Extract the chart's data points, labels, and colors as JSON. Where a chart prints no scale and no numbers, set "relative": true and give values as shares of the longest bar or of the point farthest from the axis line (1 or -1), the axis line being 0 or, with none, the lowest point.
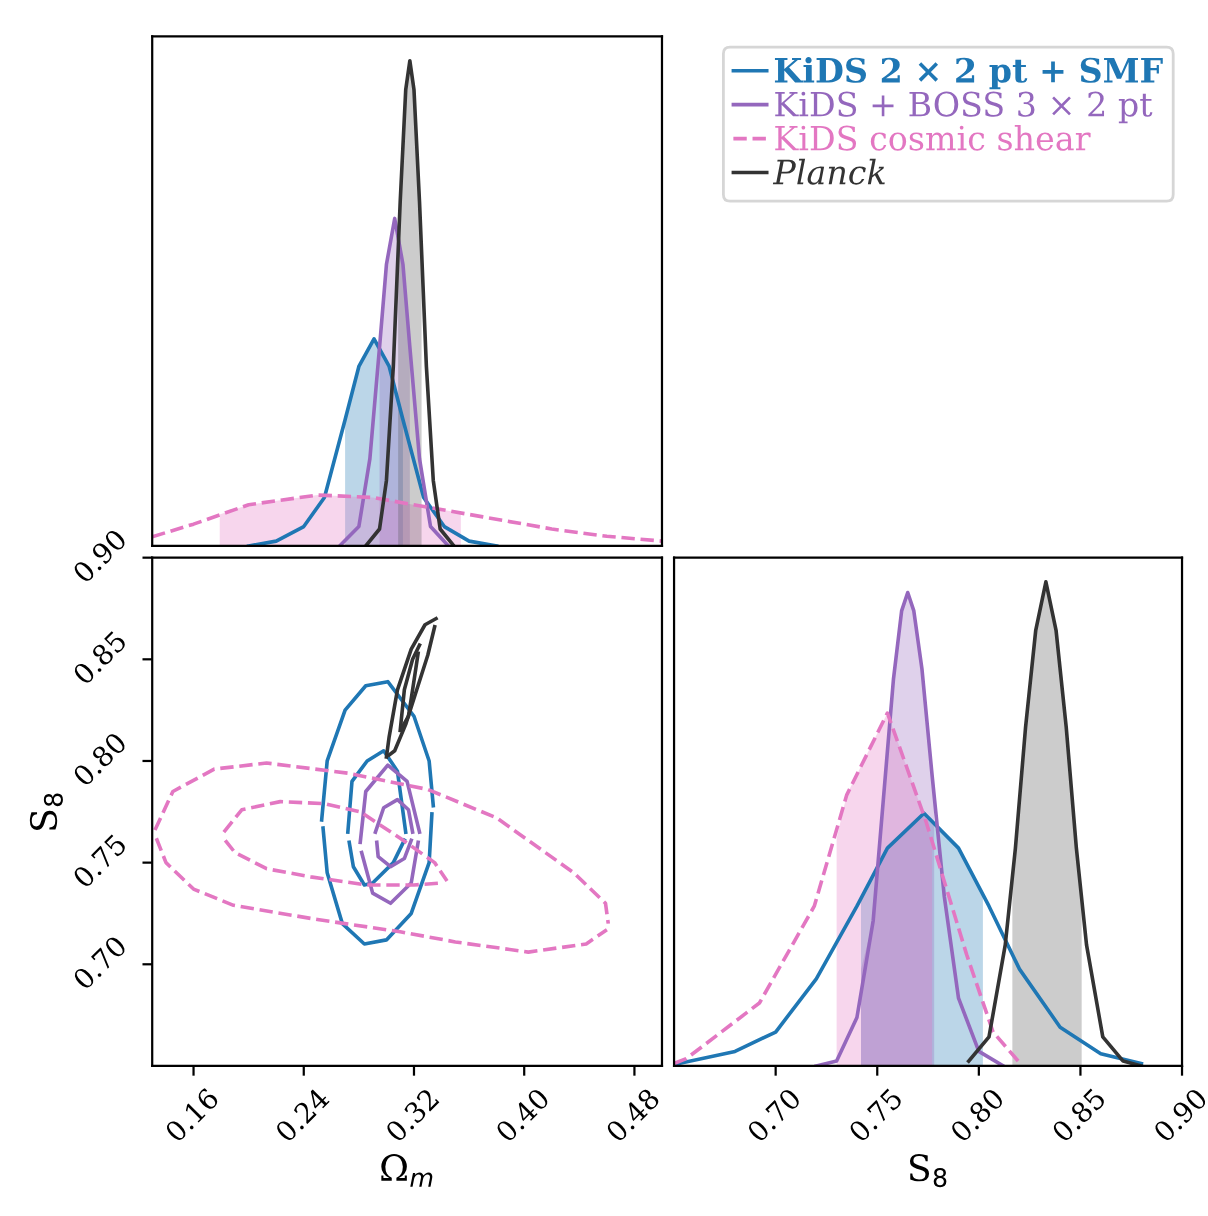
{
  "chart_data": [
    {
      "type": "line",
      "relative": true,
      "tick_labels": false,
      "legend": "top right",
      "xlim": [
        0.13,
        0.5
      ],
      "series": [
        {
          "type": "area",
          "color": "#1f77b4",
          "x": [
            0.27,
            0.28,
            0.291,
            0.302,
            0.312
          ],
          "values": [
            0.26,
            0.37,
            0.427,
            0.37,
            0.26
          ]
        },
        {
          "type": "area",
          "color": "#9467bd",
          "x": [
            0.295,
            0.3,
            0.306,
            0.312,
            0.317
          ],
          "values": [
            0.41,
            0.58,
            0.675,
            0.58,
            0.41
          ]
        },
        {
          "type": "area",
          "color": "#e377c2",
          "x": [
            0.179,
            0.2,
            0.25,
            0.29,
            0.33,
            0.354
          ],
          "values": [
            0.065,
            0.085,
            0.105,
            0.1,
            0.08,
            0.068
          ]
        },
        {
          "type": "area",
          "color": "#555555",
          "x": [
            0.3085,
            0.31,
            0.314,
            0.317,
            0.32,
            0.324,
            0.3255
          ],
          "values": [
            0.62,
            0.71,
            0.94,
            1,
            0.94,
            0.71,
            0.62
          ]
        },
        {
          "type": "line",
          "name": "KiDS 2 × 2 pt + SMF",
          "color": "#1f77b4",
          "x": [
            0.2,
            0.22,
            0.24,
            0.255,
            0.27,
            0.28,
            0.291,
            0.302,
            0.312,
            0.327,
            0.342,
            0.36,
            0.38
          ],
          "values": [
            0,
            0.01,
            0.04,
            0.1,
            0.26,
            0.37,
            0.427,
            0.37,
            0.26,
            0.1,
            0.04,
            0.01,
            0
          ]
        },
        {
          "type": "line",
          "name": "KiDS + BOSS 3 × 2 pt",
          "color": "#9467bd",
          "x": [
            0.266,
            0.28,
            0.288,
            0.295,
            0.3,
            0.306,
            0.312,
            0.317,
            0.324,
            0.332,
            0.345
          ],
          "values": [
            0,
            0.04,
            0.18,
            0.41,
            0.58,
            0.675,
            0.58,
            0.41,
            0.18,
            0.04,
            0
          ]
        },
        {
          "type": "line",
          "name": "KiDS cosmic shear",
          "color": "#e377c2",
          "line_style": "dashed",
          "x": [
            0.13,
            0.16,
            0.2,
            0.25,
            0.29,
            0.33,
            0.37,
            0.42,
            0.46,
            0.5
          ],
          "values": [
            0.019,
            0.045,
            0.085,
            0.105,
            0.1,
            0.08,
            0.06,
            0.035,
            0.02,
            0.01
          ]
        },
        {
          "type": "line",
          "name": "Planck",
          "color": "#333333",
          "x": [
            0.285,
            0.295,
            0.3,
            0.305,
            0.31,
            0.314,
            0.317,
            0.32,
            0.324,
            0.329,
            0.334,
            0.339,
            0.349
          ],
          "values": [
            0,
            0.035,
            0.135,
            0.37,
            0.71,
            0.94,
            1,
            0.94,
            0.71,
            0.37,
            0.135,
            0.035,
            0
          ]
        }
      ]
    },
    {
      "type": "line",
      "xlabel": "Ω$_{m}$",
      "ylabel": "S$_{8}$",
      "xlim": [
        0.13,
        0.5
      ],
      "ylim": [
        0.65,
        0.9
      ],
      "xticks": [
        0.16,
        0.24,
        0.32,
        {
          "value": 0.4,
          "label": "0.40"
        },
        0.48
      ],
      "yticks": [
        {
          "value": 0.7,
          "label": "0.70"
        },
        0.75,
        {
          "value": 0.8,
          "label": "0.80"
        },
        0.85,
        {
          "value": 0.9,
          "label": "0.90"
        }
      ],
      "series": [
        {
          "color": "#1f77b4",
          "x": [
            0.253,
            0.257,
            0.27,
            0.285,
            0.301,
            0.32,
            0.331,
            0.334
          ],
          "values": [
            0.771,
            0.8,
            0.825,
            0.837,
            0.839,
            0.822,
            0.8,
            0.778
          ]
        },
        {
          "color": "#1f77b4",
          "x": [
            0.254,
            0.257,
            0.268,
            0.284,
            0.3,
            0.318,
            0.331,
            0.333
          ],
          "values": [
            0.767,
            0.745,
            0.72,
            0.71,
            0.712,
            0.725,
            0.75,
            0.774
          ]
        },
        {
          "color": "#1f77b4",
          "x": [
            0.272,
            0.275,
            0.286,
            0.298,
            0.308,
            0.314
          ],
          "values": [
            0.765,
            0.79,
            0.8,
            0.805,
            0.795,
            0.765
          ]
        },
        {
          "color": "#1f77b4",
          "x": [
            0.273,
            0.276,
            0.284,
            0.29,
            0.305,
            0.313
          ],
          "values": [
            0.76,
            0.748,
            0.739,
            0.74,
            0.75,
            0.761
          ]
        },
        {
          "color": "#9467bd",
          "x": [
            0.281,
            0.285,
            0.301,
            0.315,
            0.324
          ],
          "values": [
            0.76,
            0.785,
            0.798,
            0.79,
            0.765
          ]
        },
        {
          "color": "#9467bd",
          "x": [
            0.282,
            0.29,
            0.303,
            0.318,
            0.323
          ],
          "values": [
            0.755,
            0.735,
            0.73,
            0.74,
            0.76
          ]
        },
        {
          "color": "#9467bd",
          "x": [
            0.292,
            0.298,
            0.308,
            0.316,
            0.319
          ],
          "values": [
            0.765,
            0.777,
            0.781,
            0.776,
            0.765
          ]
        },
        {
          "color": "#9467bd",
          "x": [
            0.293,
            0.294,
            0.303,
            0.313,
            0.318
          ],
          "values": [
            0.76,
            0.753,
            0.748,
            0.752,
            0.761
          ]
        },
        {
          "color": "#e377c2",
          "line_style": "dashed",
          "x": [
            0.132,
            0.145,
            0.175,
            0.213,
            0.272,
            0.33,
            0.38,
            0.436,
            0.459,
            0.461
          ],
          "values": [
            0.766,
            0.785,
            0.796,
            0.799,
            0.794,
            0.786,
            0.772,
            0.745,
            0.73,
            0.72
          ]
        },
        {
          "color": "#e377c2",
          "line_style": "dashed",
          "x": [
            0.133,
            0.14,
            0.16,
            0.189,
            0.25,
            0.31,
            0.35,
            0.403,
            0.445,
            0.46
          ],
          "values": [
            0.762,
            0.75,
            0.737,
            0.729,
            0.722,
            0.716,
            0.711,
            0.706,
            0.71,
            0.717
          ]
        },
        {
          "color": "#e377c2",
          "line_style": "dashed",
          "x": [
            0.182,
            0.195,
            0.223,
            0.255,
            0.281,
            0.31,
            0.335,
            0.344
          ],
          "values": [
            0.765,
            0.776,
            0.78,
            0.779,
            0.775,
            0.762,
            0.75,
            0.741
          ]
        },
        {
          "color": "#e377c2",
          "line_style": "dashed",
          "x": [
            0.183,
            0.19,
            0.213,
            0.245,
            0.286,
            0.32,
            0.341
          ],
          "values": [
            0.761,
            0.755,
            0.747,
            0.743,
            0.739,
            0.739,
            0.74
          ]
        },
        {
          "color": "#333333",
          "x": [
            0.3,
            0.302,
            0.308,
            0.318,
            0.328,
            0.336
          ],
          "values": [
            0.802,
            0.812,
            0.835,
            0.855,
            0.867,
            0.87
          ]
        },
        {
          "color": "#333333",
          "x": [
            0.302,
            0.306,
            0.314,
            0.322,
            0.33,
            0.335
          ],
          "values": [
            0.803,
            0.805,
            0.818,
            0.835,
            0.852,
            0.866
          ]
        },
        {
          "color": "#333333",
          "x": [
            0.31,
            0.313,
            0.319,
            0.324
          ],
          "values": [
            0.815,
            0.835,
            0.85,
            0.857
          ]
        },
        {
          "color": "#333333",
          "x": [
            0.311,
            0.316,
            0.319,
            0.323
          ],
          "values": [
            0.816,
            0.822,
            0.835,
            0.853
          ]
        }
      ]
    },
    {
      "type": "line",
      "relative": true,
      "tick_labels": "x",
      "xlabel": "S$_{8}$",
      "xlim": [
        0.65,
        0.9
      ],
      "xticks": [
        {
          "value": 0.7,
          "label": "0.70"
        },
        0.75,
        {
          "value": 0.8,
          "label": "0.80"
        },
        0.85,
        {
          "value": 0.9,
          "label": "0.90"
        }
      ],
      "series": [
        {
          "type": "area",
          "color": "#1f77b4",
          "x": [
            0.742,
            0.755,
            0.773,
            0.79,
            0.802
          ],
          "values": [
            0.34,
            0.45,
            0.522,
            0.45,
            0.36
          ]
        },
        {
          "type": "area",
          "color": "#9467bd",
          "x": [
            0.742,
            0.748,
            0.753,
            0.758,
            0.762,
            0.765,
            0.768,
            0.772,
            0.777,
            0.778
          ],
          "values": [
            0.2,
            0.3,
            0.55,
            0.8,
            0.94,
            0.978,
            0.94,
            0.82,
            0.6,
            0.55
          ]
        },
        {
          "type": "area",
          "color": "#e377c2",
          "x": [
            0.73,
            0.735,
            0.755,
            0.774,
            0.777
          ],
          "values": [
            0.47,
            0.56,
            0.729,
            0.505,
            0.46
          ]
        },
        {
          "type": "area",
          "color": "#555555",
          "x": [
            0.8165,
            0.818,
            0.823,
            0.828,
            0.833,
            0.838,
            0.843,
            0.848,
            0.8506
          ],
          "values": [
            0.4,
            0.45,
            0.7,
            0.9,
            1,
            0.9,
            0.7,
            0.45,
            0.33
          ]
        },
        {
          "type": "line",
          "color": "#1f77b4",
          "x": [
            0.65,
            0.68,
            0.7,
            0.72,
            0.74,
            0.755,
            0.773,
            0.79,
            0.805,
            0.82,
            0.84,
            0.86,
            0.88
          ],
          "values": [
            0.003,
            0.03,
            0.07,
            0.18,
            0.33,
            0.45,
            0.522,
            0.45,
            0.33,
            0.2,
            0.08,
            0.025,
            0.005
          ]
        },
        {
          "type": "line",
          "color": "#9467bd",
          "x": [
            0.72,
            0.73,
            0.74,
            0.748,
            0.753,
            0.758,
            0.762,
            0.765,
            0.768,
            0.772,
            0.777,
            0.783,
            0.79,
            0.8,
            0.812
          ],
          "values": [
            0,
            0.01,
            0.1,
            0.3,
            0.55,
            0.8,
            0.94,
            0.978,
            0.94,
            0.82,
            0.6,
            0.35,
            0.14,
            0.03,
            0
          ]
        },
        {
          "type": "line",
          "color": "#e377c2",
          "line_style": "dashed",
          "x": [
            0.65,
            0.656,
            0.692,
            0.719,
            0.735,
            0.755,
            0.774,
            0.794,
            0.807,
            0.82
          ],
          "values": [
            0.005,
            0.015,
            0.13,
            0.33,
            0.56,
            0.729,
            0.505,
            0.23,
            0.07,
            0.007
          ]
        },
        {
          "type": "line",
          "color": "#333333",
          "x": [
            0.795,
            0.805,
            0.813,
            0.818,
            0.823,
            0.828,
            0.833,
            0.838,
            0.843,
            0.848,
            0.853,
            0.861,
            0.871,
            0.88
          ],
          "values": [
            0.01,
            0.06,
            0.25,
            0.45,
            0.7,
            0.9,
            1,
            0.9,
            0.7,
            0.45,
            0.25,
            0.06,
            0.01,
            0
          ]
        }
      ]
    }
  ]
}
